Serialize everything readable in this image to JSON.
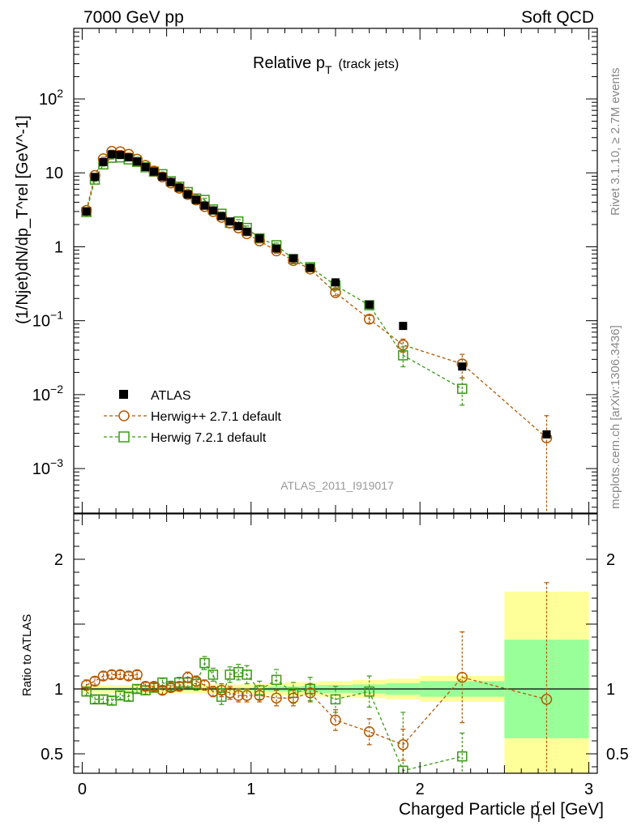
{
  "header": {
    "energy_label": "7000 GeV pp",
    "process_label": "Soft QCD"
  },
  "side_labels": {
    "rivet": "Rivet 3.1.10, ≥ 2.7M events",
    "mcplots": "mcplots.cern.ch [arXiv:1306.3436]"
  },
  "chart_data": [
    {
      "type": "scatter",
      "panel": "main",
      "title": "Relative p_T (track jets)",
      "title_main": "Relative p",
      "title_sub": "T",
      "title_extra": "(track jets)",
      "ylabel": "(1/Njet)dN/dp_T^rel [GeV^-1]",
      "yscale": "log",
      "ylim": [
        0.00025,
        900
      ],
      "xlim": [
        -0.05,
        3.05
      ],
      "y_tick_labels": [
        {
          "value": 0.001,
          "base": "10",
          "exp": "−3"
        },
        {
          "value": 0.01,
          "base": "10",
          "exp": "−2"
        },
        {
          "value": 0.1,
          "base": "10",
          "exp": "−1"
        },
        {
          "value": 1,
          "base": "1",
          "exp": ""
        },
        {
          "value": 10,
          "base": "10",
          "exp": ""
        },
        {
          "value": 100,
          "base": "10",
          "exp": "2"
        }
      ],
      "watermark": "ATLAS_2011_I919017",
      "x": [
        0.025,
        0.075,
        0.125,
        0.175,
        0.225,
        0.275,
        0.325,
        0.375,
        0.425,
        0.475,
        0.525,
        0.575,
        0.625,
        0.675,
        0.725,
        0.775,
        0.825,
        0.875,
        0.925,
        0.975,
        1.05,
        1.15,
        1.25,
        1.35,
        1.5,
        1.7,
        1.9,
        2.25,
        2.75
      ],
      "series": [
        {
          "name": "ATLAS",
          "style": "data",
          "color": "#000000",
          "values": [
            3.0,
            8.8,
            14.0,
            17.8,
            17.5,
            16.2,
            14.2,
            12.0,
            10.4,
            8.9,
            7.5,
            6.3,
            5.1,
            4.3,
            3.6,
            3.1,
            2.6,
            2.2,
            1.9,
            1.6,
            1.3,
            0.95,
            0.7,
            0.52,
            0.33,
            0.165,
            0.085,
            0.024,
            0.0029
          ]
        },
        {
          "name": "Herwig++ 2.7.1 default",
          "style": "circle",
          "color": "#b35900",
          "values": [
            3.1,
            9.2,
            15.5,
            19.5,
            19.3,
            17.8,
            15.3,
            12.6,
            10.6,
            8.8,
            7.3,
            6.2,
            5.1,
            4.3,
            3.5,
            3.0,
            2.5,
            2.1,
            1.8,
            1.5,
            1.2,
            0.88,
            0.65,
            0.5,
            0.24,
            0.105,
            0.047,
            0.026,
            0.0026
          ],
          "errors": [
            0.05,
            0.05,
            0.05,
            0.04,
            0.04,
            0.04,
            0.04,
            0.04,
            0.04,
            0.04,
            0.04,
            0.04,
            0.05,
            0.05,
            0.05,
            0.05,
            0.05,
            0.05,
            0.06,
            0.06,
            0.06,
            0.07,
            0.07,
            0.08,
            0.09,
            0.12,
            0.2,
            0.35,
            1.0
          ]
        },
        {
          "name": "Herwig 7.2.1 default",
          "style": "square",
          "color": "#3a9a16",
          "values": [
            2.95,
            8.1,
            13.0,
            16.0,
            16.2,
            15.2,
            14.1,
            11.9,
            10.4,
            9.6,
            7.7,
            6.5,
            5.5,
            4.5,
            4.3,
            3.2,
            2.8,
            2.1,
            2.2,
            1.8,
            1.3,
            1.05,
            0.68,
            0.53,
            0.3,
            0.162,
            0.034,
            0.012,
            null
          ],
          "errors": [
            0.05,
            0.05,
            0.05,
            0.04,
            0.04,
            0.04,
            0.04,
            0.04,
            0.04,
            0.04,
            0.04,
            0.04,
            0.05,
            0.05,
            0.05,
            0.05,
            0.05,
            0.05,
            0.06,
            0.06,
            0.06,
            0.07,
            0.07,
            0.08,
            0.1,
            0.12,
            0.3,
            0.4,
            null
          ]
        }
      ]
    },
    {
      "type": "scatter",
      "panel": "ratio",
      "ylabel": "Ratio to ATLAS",
      "xlabel": "Charged Particle p_T^rel [GeV]",
      "xlabel_main": "Charged Particle p",
      "xlabel_sub": "T",
      "xlabel_sup": "r",
      "xlabel_tail": "el [GeV]",
      "ylim": [
        0.35,
        2.35
      ],
      "xlim": [
        -0.05,
        3.05
      ],
      "x_tick_labels": [
        {
          "value": 0,
          "label": "0"
        },
        {
          "value": 1,
          "label": "1"
        },
        {
          "value": 2,
          "label": "2"
        },
        {
          "value": 3,
          "label": "3"
        }
      ],
      "y_tick_labels": [
        {
          "value": 0.5,
          "label": "0.5"
        },
        {
          "value": 1,
          "label": "1"
        },
        {
          "value": 2,
          "label": "2"
        }
      ],
      "bin_edges": [
        0.0,
        0.05,
        0.1,
        0.15,
        0.2,
        0.25,
        0.3,
        0.35,
        0.4,
        0.45,
        0.5,
        0.55,
        0.6,
        0.65,
        0.7,
        0.75,
        0.8,
        0.85,
        0.9,
        0.95,
        1.0,
        1.1,
        1.2,
        1.3,
        1.4,
        1.6,
        1.8,
        2.0,
        2.5,
        3.0
      ],
      "band_stat": [
        0.01,
        0.01,
        0.01,
        0.01,
        0.01,
        0.01,
        0.01,
        0.01,
        0.01,
        0.01,
        0.01,
        0.01,
        0.01,
        0.01,
        0.01,
        0.01,
        0.01,
        0.01,
        0.01,
        0.01,
        0.01,
        0.02,
        0.02,
        0.025,
        0.03,
        0.035,
        0.045,
        0.06,
        0.38
      ],
      "band_total": [
        0.03,
        0.03,
        0.03,
        0.03,
        0.03,
        0.03,
        0.03,
        0.03,
        0.03,
        0.03,
        0.03,
        0.035,
        0.035,
        0.035,
        0.035,
        0.035,
        0.035,
        0.035,
        0.035,
        0.035,
        0.04,
        0.045,
        0.05,
        0.05,
        0.06,
        0.07,
        0.08,
        0.1,
        0.75
      ],
      "series": [
        {
          "name": "Herwig++ 2.7.1 default",
          "style": "circle",
          "color": "#b35900",
          "values": [
            1.03,
            1.06,
            1.1,
            1.11,
            1.11,
            1.1,
            1.11,
            1.02,
            1.02,
            0.99,
            1.01,
            1.02,
            1.09,
            1.06,
            1.03,
            0.98,
            0.99,
            0.97,
            0.95,
            0.95,
            0.95,
            0.93,
            0.93,
            0.97,
            0.76,
            0.67,
            0.57,
            1.09,
            0.92
          ],
          "errors": [
            0.04,
            0.03,
            0.03,
            0.03,
            0.03,
            0.03,
            0.03,
            0.03,
            0.03,
            0.03,
            0.03,
            0.03,
            0.04,
            0.04,
            0.04,
            0.04,
            0.05,
            0.05,
            0.05,
            0.05,
            0.05,
            0.06,
            0.06,
            0.07,
            0.08,
            0.1,
            0.12,
            0.35,
            0.9
          ]
        },
        {
          "name": "Herwig 7.2.1 default",
          "style": "square",
          "color": "#3a9a16",
          "values": [
            0.98,
            0.92,
            0.92,
            0.91,
            0.95,
            0.94,
            1.0,
            0.99,
            1.01,
            1.05,
            1.02,
            1.05,
            1.05,
            1.04,
            1.2,
            1.11,
            0.94,
            1.11,
            1.13,
            1.11,
            0.99,
            1.07,
            0.97,
            1.0,
            0.92,
            0.98,
            0.37,
            0.48,
            null
          ],
          "errors": [
            0.03,
            0.03,
            0.03,
            0.03,
            0.03,
            0.03,
            0.03,
            0.03,
            0.03,
            0.03,
            0.04,
            0.04,
            0.04,
            0.05,
            0.05,
            0.05,
            0.06,
            0.06,
            0.06,
            0.07,
            0.07,
            0.08,
            0.08,
            0.09,
            0.1,
            0.12,
            0.45,
            0.18,
            null
          ]
        }
      ]
    }
  ],
  "colors": {
    "band_total": "#ffff99",
    "band_stat": "#99ff99",
    "atlas": "#000000",
    "herwigpp": "#b35900",
    "herwig7": "#3a9a16",
    "side_text": "#888888",
    "watermark": "#999999"
  }
}
